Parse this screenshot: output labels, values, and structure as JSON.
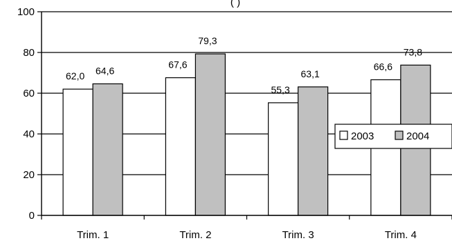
{
  "chart_data": {
    "type": "bar",
    "title": "(                                               )",
    "categories": [
      "Trim. 1",
      "Trim. 2",
      "Trim. 3",
      "Trim. 4"
    ],
    "series": [
      {
        "name": "2003",
        "values": [
          62.0,
          67.6,
          55.3,
          66.6
        ],
        "labels": [
          "62,0",
          "67,6",
          "55,3",
          "66,6"
        ],
        "color": "#ffffff"
      },
      {
        "name": "2004",
        "values": [
          64.6,
          79.3,
          63.1,
          73.8
        ],
        "labels": [
          "64,6",
          "79,3",
          "63,1",
          "73,8"
        ],
        "color": "#c0c0c0"
      }
    ],
    "ylim": [
      0,
      100
    ],
    "yticks": [
      "0",
      "20",
      "40",
      "60",
      "80",
      "100"
    ],
    "ytick_values": [
      0,
      20,
      40,
      60,
      80,
      100
    ],
    "grid": true,
    "legend_position": "right",
    "xlabel": "",
    "ylabel": ""
  }
}
